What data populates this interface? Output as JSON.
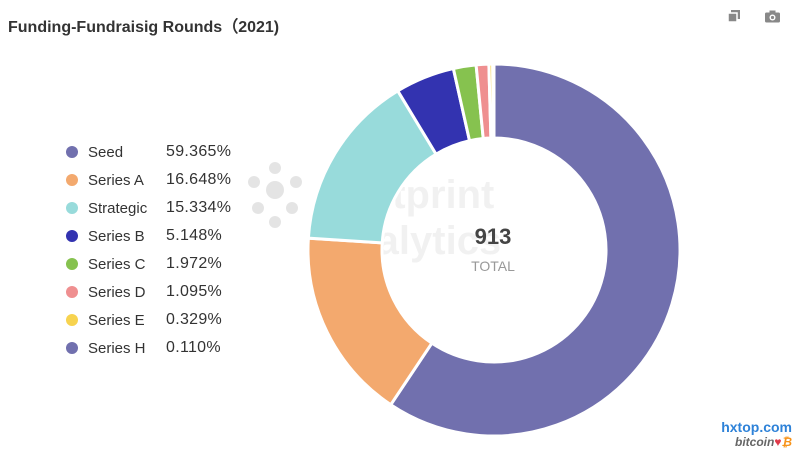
{
  "chart_data": {
    "type": "pie",
    "title": "Funding-Fundraisig Rounds（2021)",
    "center_value": "913",
    "center_label": "TOTAL",
    "categories": [
      "Seed",
      "Series A",
      "Strategic",
      "Series B",
      "Series C",
      "Series D",
      "Series E",
      "Series H"
    ],
    "values": [
      59.365,
      16.648,
      15.334,
      5.148,
      1.972,
      1.095,
      0.329,
      0.11
    ],
    "value_labels": [
      "59.365%",
      "16.648%",
      "15.334%",
      "5.148%",
      "1.972%",
      "1.095%",
      "0.329%",
      "0.110%"
    ],
    "colors": [
      "#7170ae",
      "#f3a96e",
      "#98dbdb",
      "#3333b0",
      "#86c24f",
      "#ef8f90",
      "#f7d34f",
      "#7170ae"
    ],
    "legend_position": "left"
  },
  "toolbar": {
    "copy_icon": "copy-icon",
    "camera_icon": "camera-icon"
  },
  "watermark": {
    "line1": "footprint",
    "line2": "analytics"
  },
  "site": {
    "domain": "hxtop.com",
    "sub": "bitcoin",
    "heart": "♥",
    "coin": "₿"
  }
}
